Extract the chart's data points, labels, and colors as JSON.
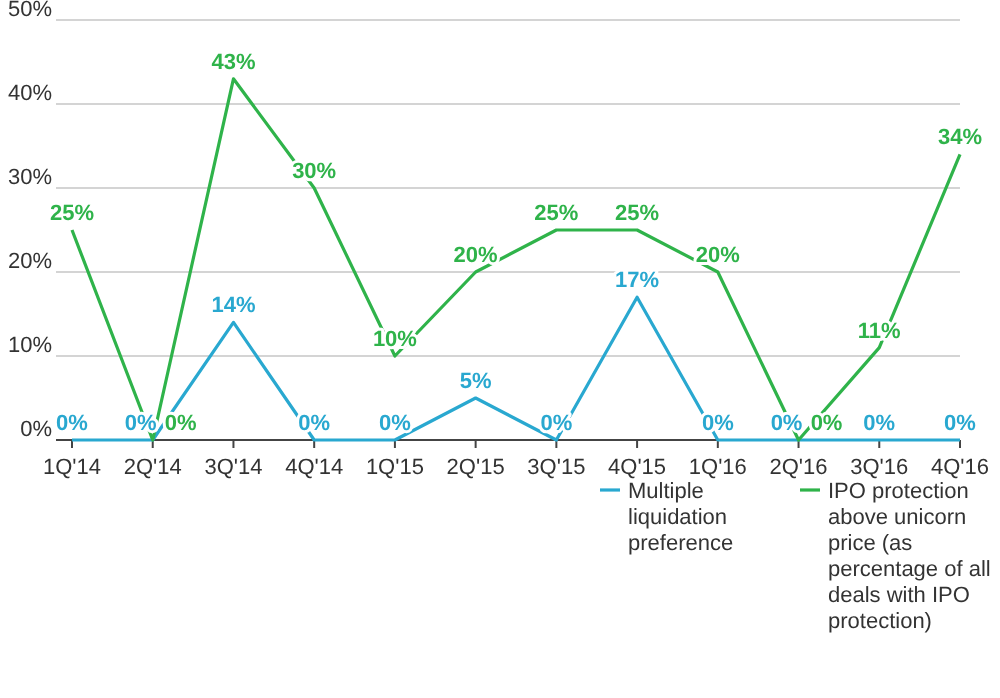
{
  "chart_data": {
    "type": "line",
    "categories": [
      "1Q'14",
      "2Q'14",
      "3Q'14",
      "4Q'14",
      "1Q'15",
      "2Q'15",
      "3Q'15",
      "4Q'15",
      "1Q'16",
      "2Q'16",
      "3Q'16",
      "4Q'16"
    ],
    "series": [
      {
        "name": "Multiple liquidation preference",
        "color": "#29a8d0",
        "values": [
          0,
          0,
          14,
          0,
          0,
          5,
          0,
          17,
          0,
          0,
          0,
          0
        ],
        "value_labels": [
          "0%",
          "0%",
          "14%",
          "0%",
          "0%",
          "5%",
          "0%",
          "17%",
          "0%",
          "0%",
          "0%",
          "0%"
        ]
      },
      {
        "name": "IPO protection above unicorn price (as percentage of all deals with IPO protection)",
        "color": "#2fb34a",
        "values": [
          25,
          0,
          43,
          30,
          10,
          20,
          25,
          25,
          20,
          0,
          11,
          34
        ],
        "value_labels": [
          "25%",
          "0%",
          "43%",
          "30%",
          "10%",
          "20%",
          "25%",
          "25%",
          "20%",
          "0%",
          "11%",
          "34%"
        ]
      }
    ],
    "ylim": [
      0,
      50
    ],
    "yticks": [
      {
        "value": 0,
        "label": "0%"
      },
      {
        "value": 10,
        "label": "10%"
      },
      {
        "value": 20,
        "label": "20%"
      },
      {
        "value": 30,
        "label": "30%"
      },
      {
        "value": 40,
        "label": "40%"
      },
      {
        "value": 50,
        "label": "50%"
      }
    ],
    "grid": "y",
    "legend": "bottom right",
    "marker": "none",
    "line_style": "solid"
  }
}
